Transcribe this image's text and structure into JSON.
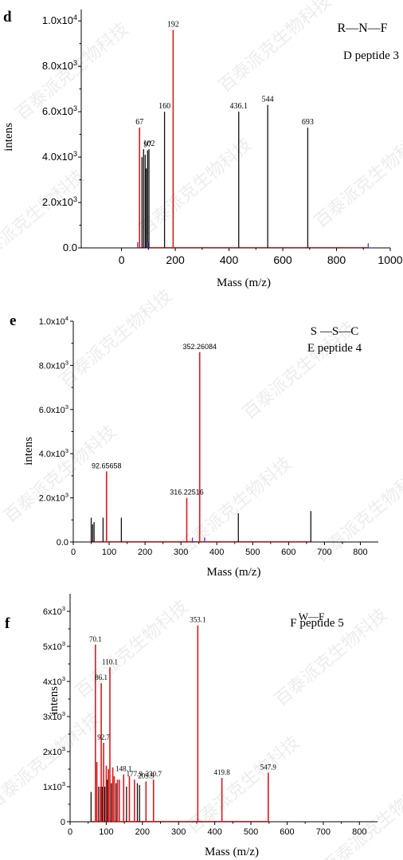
{
  "watermark": "百泰派克生物科技",
  "colors": {
    "red": "#e0191d",
    "black": "#111111",
    "blue": "#3b3bd6"
  },
  "chart_data": [
    {
      "panel_letter": "d",
      "type": "bar",
      "xlabel": "Mass (m/z)",
      "ylabel": "intens",
      "xlim": [
        -150,
        1000
      ],
      "ylim": [
        0,
        10500
      ],
      "x_ticks": [
        0,
        200,
        400,
        600,
        800,
        1000
      ],
      "x_tick_labels": [
        "0",
        "200",
        "400",
        "600",
        "800",
        "1000"
      ],
      "y_ticks": [
        0,
        2000,
        4000,
        6000,
        8000,
        10000
      ],
      "y_tick_labels": [
        {
          "base": "0.0",
          "exp": ""
        },
        {
          "base": "2.0x10",
          "exp": "3"
        },
        {
          "base": "4.0x10",
          "exp": "3"
        },
        {
          "base": "6.0x10",
          "exp": "3"
        },
        {
          "base": "8.0x10",
          "exp": "3"
        },
        {
          "base": "1.0x10",
          "exp": "4"
        }
      ],
      "annotations": [
        "R—N—F",
        "D peptide 3"
      ],
      "peaks": [
        {
          "mz": 60,
          "intensity": 250,
          "color": "blue"
        },
        {
          "mz": 67,
          "intensity": 5300,
          "color": "red",
          "label": "67"
        },
        {
          "mz": 76,
          "intensity": 4000,
          "color": "black"
        },
        {
          "mz": 82,
          "intensity": 4350,
          "color": "black"
        },
        {
          "mz": 88,
          "intensity": 4100,
          "color": "black"
        },
        {
          "mz": 92,
          "intensity": 3500,
          "color": "black"
        },
        {
          "mz": 97,
          "intensity": 4300,
          "color": "black",
          "label": "97"
        },
        {
          "mz": 102,
          "intensity": 4350,
          "color": "black",
          "label": "102"
        },
        {
          "mz": 99,
          "intensity": 250,
          "color": "blue"
        },
        {
          "mz": 160,
          "intensity": 6000,
          "color": "black",
          "label": "160"
        },
        {
          "mz": 192,
          "intensity": 9600,
          "color": "red",
          "label": "192"
        },
        {
          "mz": 436.1,
          "intensity": 6000,
          "color": "black",
          "label": "436.1"
        },
        {
          "mz": 544,
          "intensity": 6300,
          "color": "black",
          "label": "544"
        },
        {
          "mz": 693,
          "intensity": 5300,
          "color": "black",
          "label": "693"
        },
        {
          "mz": 918,
          "intensity": 200,
          "color": "blue"
        }
      ]
    },
    {
      "panel_letter": "e",
      "type": "bar",
      "xlabel": "Mass (m/z)",
      "ylabel": "intens",
      "xlim": [
        0,
        850
      ],
      "ylim": [
        0,
        10000
      ],
      "x_ticks": [
        0,
        100,
        200,
        300,
        400,
        500,
        600,
        700,
        800
      ],
      "x_tick_labels": [
        "0",
        "100",
        "200",
        "300",
        "400",
        "500",
        "600",
        "700",
        "800"
      ],
      "y_ticks": [
        0,
        2000,
        4000,
        6000,
        8000,
        10000
      ],
      "y_tick_labels": [
        {
          "base": "0.0",
          "exp": ""
        },
        {
          "base": "2.0x10",
          "exp": "3"
        },
        {
          "base": "4.0x10",
          "exp": "3"
        },
        {
          "base": "6.0x10",
          "exp": "3"
        },
        {
          "base": "8.0x10",
          "exp": "3"
        },
        {
          "base": "1.0x10",
          "exp": "4"
        }
      ],
      "annotations": [
        "S —S—C",
        "E peptide 4"
      ],
      "peaks": [
        {
          "mz": 50,
          "intensity": 1100,
          "color": "black"
        },
        {
          "mz": 54,
          "intensity": 800,
          "color": "black"
        },
        {
          "mz": 58,
          "intensity": 900,
          "color": "black"
        },
        {
          "mz": 83,
          "intensity": 1100,
          "color": "black"
        },
        {
          "mz": 92.65658,
          "intensity": 3200,
          "color": "red",
          "label": "92.65658"
        },
        {
          "mz": 134,
          "intensity": 1100,
          "color": "black"
        },
        {
          "mz": 316.22516,
          "intensity": 2000,
          "color": "red",
          "label": "316.22516"
        },
        {
          "mz": 332,
          "intensity": 200,
          "color": "blue"
        },
        {
          "mz": 352.26084,
          "intensity": 8600,
          "color": "red",
          "label": "352.26084"
        },
        {
          "mz": 366,
          "intensity": 200,
          "color": "blue"
        },
        {
          "mz": 460,
          "intensity": 1300,
          "color": "black"
        },
        {
          "mz": 662,
          "intensity": 1400,
          "color": "black"
        }
      ]
    },
    {
      "panel_letter": "f",
      "type": "bar",
      "xlabel": "Mass (m/z)",
      "ylabel": "intens",
      "xlim": [
        0,
        850
      ],
      "ylim": [
        0,
        6500
      ],
      "x_ticks": [
        0,
        100,
        200,
        300,
        400,
        500,
        600,
        700,
        800
      ],
      "x_tick_labels": [
        "0",
        "100",
        "200",
        "300",
        "400",
        "500",
        "600",
        "700",
        "800"
      ],
      "y_ticks": [
        0,
        1000,
        2000,
        3000,
        4000,
        5000,
        6000
      ],
      "y_tick_labels": [
        {
          "base": "0",
          "exp": ""
        },
        {
          "base": "1x10",
          "exp": "3"
        },
        {
          "base": "2x10",
          "exp": "3"
        },
        {
          "base": "3x10",
          "exp": "3"
        },
        {
          "base": "4x10",
          "exp": "3"
        },
        {
          "base": "5x10",
          "exp": "3"
        },
        {
          "base": "6x10",
          "exp": "3"
        }
      ],
      "annotations": [
        "W—F",
        "F peptide 5"
      ],
      "peaks": [
        {
          "mz": 58,
          "intensity": 850,
          "color": "black"
        },
        {
          "mz": 70.1,
          "intensity": 5050,
          "color": "red",
          "label": "70.1"
        },
        {
          "mz": 74,
          "intensity": 1700,
          "color": "red"
        },
        {
          "mz": 79,
          "intensity": 1000,
          "color": "black"
        },
        {
          "mz": 84,
          "intensity": 1000,
          "color": "red"
        },
        {
          "mz": 86.1,
          "intensity": 3950,
          "color": "red",
          "label": "86.1"
        },
        {
          "mz": 89,
          "intensity": 1000,
          "color": "black"
        },
        {
          "mz": 92.7,
          "intensity": 2250,
          "color": "red",
          "label": "92.7"
        },
        {
          "mz": 96,
          "intensity": 1000,
          "color": "black"
        },
        {
          "mz": 100,
          "intensity": 1600,
          "color": "red"
        },
        {
          "mz": 103,
          "intensity": 1200,
          "color": "black"
        },
        {
          "mz": 106,
          "intensity": 1500,
          "color": "red"
        },
        {
          "mz": 110.1,
          "intensity": 4400,
          "color": "red",
          "label": "110.1"
        },
        {
          "mz": 114,
          "intensity": 1100,
          "color": "black"
        },
        {
          "mz": 118,
          "intensity": 1550,
          "color": "red"
        },
        {
          "mz": 122,
          "intensity": 1300,
          "color": "red"
        },
        {
          "mz": 127,
          "intensity": 1100,
          "color": "black"
        },
        {
          "mz": 131,
          "intensity": 1200,
          "color": "red"
        },
        {
          "mz": 136,
          "intensity": 1200,
          "color": "red"
        },
        {
          "mz": 148.1,
          "intensity": 1350,
          "color": "red",
          "label": "148.1"
        },
        {
          "mz": 156,
          "intensity": 1000,
          "color": "black"
        },
        {
          "mz": 164,
          "intensity": 1300,
          "color": "red"
        },
        {
          "mz": 177.9,
          "intensity": 1200,
          "color": "red",
          "label": "177.9"
        },
        {
          "mz": 186,
          "intensity": 1100,
          "color": "black"
        },
        {
          "mz": 192,
          "intensity": 1050,
          "color": "black"
        },
        {
          "mz": 209.9,
          "intensity": 1150,
          "color": "red",
          "label": "209.9"
        },
        {
          "mz": 230.7,
          "intensity": 1200,
          "color": "red",
          "label": "230.7"
        },
        {
          "mz": 353.1,
          "intensity": 5600,
          "color": "red",
          "label": "353.1"
        },
        {
          "mz": 419.8,
          "intensity": 1250,
          "color": "red",
          "label": "419.8"
        },
        {
          "mz": 547.9,
          "intensity": 1400,
          "color": "red",
          "label": "547.9"
        }
      ]
    }
  ]
}
